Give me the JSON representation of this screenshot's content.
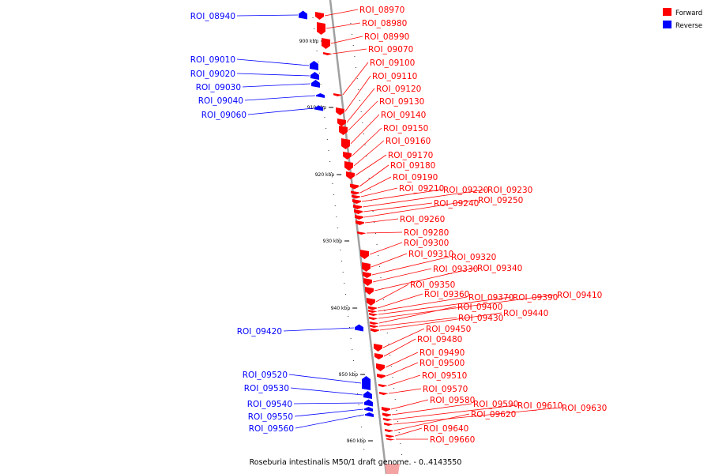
{
  "caption": "Roseburia intestinalis M50/1 draft genome. - 0..4143550",
  "legend": [
    {
      "label": "Forward",
      "color": "#ff0000"
    },
    {
      "label": "Reverse",
      "color": "#0000ff"
    }
  ],
  "colors": {
    "forward": "#ff0000",
    "reverse": "#0000ff",
    "axis": "#a0a0a0",
    "tick": "#000000"
  },
  "ticks": [
    "900 kbp",
    "910 kbp",
    "920 kbp",
    "930 kbp",
    "940 kbp",
    "950 kbp",
    "960 kbp"
  ],
  "reverse_features": [
    "ROI_08940",
    "ROI_09010",
    "ROI_09020",
    "ROI_09030",
    "ROI_09040",
    "ROI_09060",
    "ROI_09420",
    "ROI_09520",
    "ROI_09530",
    "ROI_09540",
    "ROI_09550",
    "ROI_09560"
  ],
  "forward_features": [
    "ROI_08970",
    "ROI_08980",
    "ROI_08990",
    "ROI_09070",
    "ROI_09100",
    "ROI_09110",
    "ROI_09120",
    "ROI_09130",
    "ROI_09140",
    "ROI_09150",
    "ROI_09160",
    "ROI_09170",
    "ROI_09180",
    "ROI_09190",
    "ROI_09210",
    "ROI_09220",
    "ROI_09230",
    "ROI_09240",
    "ROI_09250",
    "ROI_09260",
    "ROI_09280",
    "ROI_09300",
    "ROI_09310",
    "ROI_09320",
    "ROI_09330",
    "ROI_09340",
    "ROI_09350",
    "ROI_09360",
    "ROI_09370",
    "ROI_09390",
    "ROI_09410",
    "ROI_09400",
    "ROI_09430",
    "ROI_09440",
    "ROI_09450",
    "ROI_09480",
    "ROI_09490",
    "ROI_09500",
    "ROI_09510",
    "ROI_09570",
    "ROI_09580",
    "ROI_09590",
    "ROI_09610",
    "ROI_09630",
    "ROI_09620",
    "ROI_09640",
    "ROI_09660"
  ]
}
